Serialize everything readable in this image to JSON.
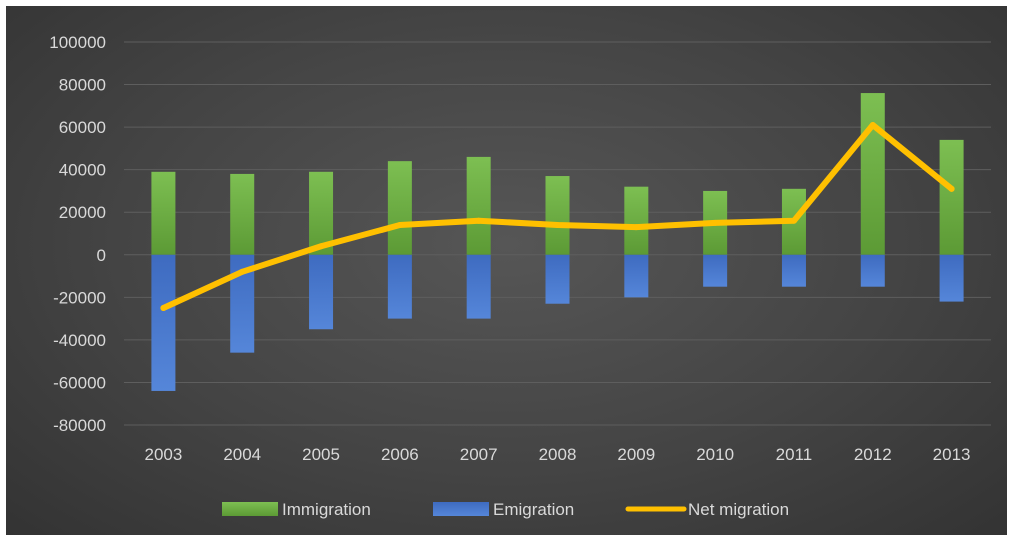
{
  "chart_data": {
    "type": "bar",
    "categories": [
      "2003",
      "2004",
      "2005",
      "2006",
      "2007",
      "2008",
      "2009",
      "2010",
      "2011",
      "2012",
      "2013"
    ],
    "series": [
      {
        "name": "Immigration",
        "kind": "bar",
        "color": "#6fae45",
        "values": [
          39000,
          38000,
          39000,
          44000,
          46000,
          37000,
          32000,
          30000,
          31000,
          76000,
          54000
        ]
      },
      {
        "name": "Emigration",
        "kind": "bar",
        "color": "#4472c4",
        "values": [
          -64000,
          -46000,
          -35000,
          -30000,
          -30000,
          -23000,
          -20000,
          -15000,
          -15000,
          -15000,
          -22000
        ]
      },
      {
        "name": "Net migration",
        "kind": "line",
        "color": "#ffc000",
        "values": [
          -25000,
          -8000,
          4000,
          14000,
          16000,
          14000,
          13000,
          15000,
          16000,
          61000,
          31000
        ]
      }
    ],
    "yticks": [
      "100000",
      "80000",
      "60000",
      "40000",
      "20000",
      "0",
      "-20000",
      "-40000",
      "-60000",
      "-80000"
    ],
    "ylim": [
      -80000,
      100000
    ],
    "grid": true,
    "legend_position": "bottom"
  }
}
